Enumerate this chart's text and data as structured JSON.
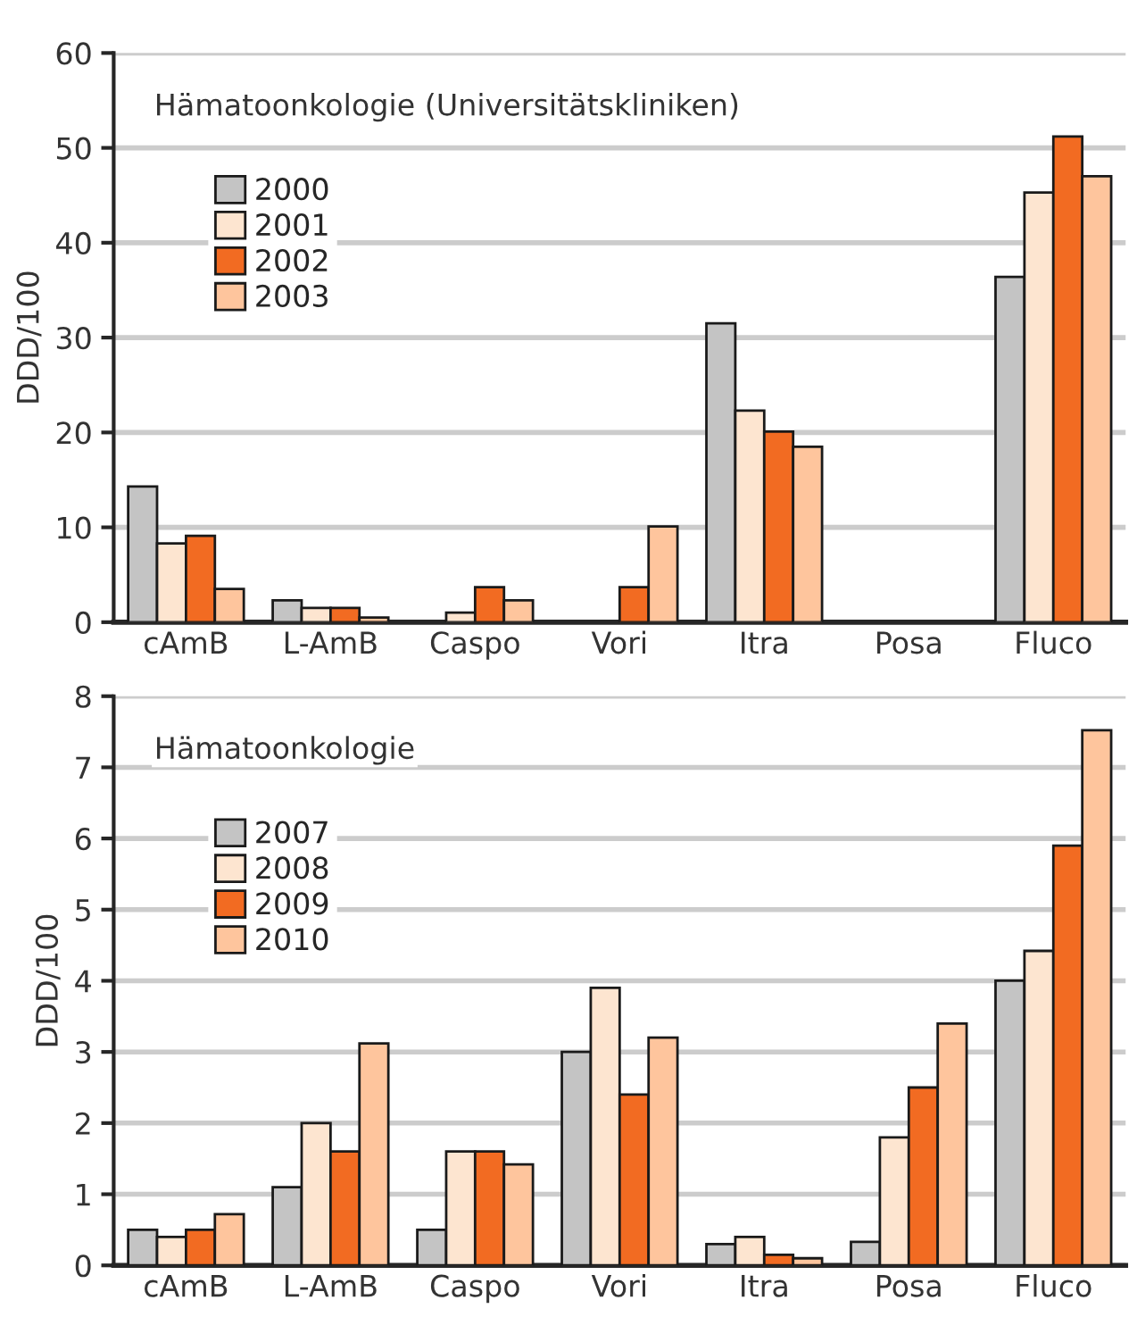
{
  "chart_data": [
    {
      "type": "bar",
      "title": "Hämatoonkologie (Universitätskliniken)",
      "ylabel": "DDD/100",
      "categories": [
        "cAmB",
        "L-AmB",
        "Caspo",
        "Vori",
        "Itra",
        "Posa",
        "Fluco"
      ],
      "ylim": [
        0,
        60
      ],
      "yticks": [
        0,
        10,
        20,
        30,
        40,
        50,
        60
      ],
      "grid": "y",
      "legend": "top left",
      "series": [
        {
          "name": "2000",
          "color": "#c4c4c4",
          "values": [
            14.3,
            2.3,
            null,
            null,
            31.5,
            null,
            36.4
          ]
        },
        {
          "name": "2001",
          "color": "#fde5d0",
          "values": [
            8.3,
            1.5,
            1.0,
            null,
            22.3,
            null,
            45.3
          ]
        },
        {
          "name": "2002",
          "color": "#f26b22",
          "values": [
            9.1,
            1.5,
            3.7,
            3.7,
            20.1,
            null,
            51.2
          ]
        },
        {
          "name": "2003",
          "color": "#fec59d",
          "values": [
            3.5,
            0.5,
            2.3,
            10.1,
            18.5,
            null,
            47.0
          ]
        }
      ]
    },
    {
      "type": "bar",
      "title": "Hämatoonkologie",
      "ylabel": "DDD/100",
      "categories": [
        "cAmB",
        "L-AmB",
        "Caspo",
        "Vori",
        "Itra",
        "Posa",
        "Fluco"
      ],
      "ylim": [
        0,
        8
      ],
      "yticks": [
        0,
        1,
        2,
        3,
        4,
        5,
        6,
        7,
        8
      ],
      "grid": "y",
      "legend": "top left",
      "series": [
        {
          "name": "2007",
          "color": "#c4c4c4",
          "values": [
            0.5,
            1.1,
            0.5,
            3.0,
            0.3,
            0.33,
            4.0
          ]
        },
        {
          "name": "2008",
          "color": "#fde5d0",
          "values": [
            0.4,
            2.0,
            1.6,
            3.9,
            0.4,
            1.8,
            4.42
          ]
        },
        {
          "name": "2009",
          "color": "#f26b22",
          "values": [
            0.5,
            1.6,
            1.6,
            2.4,
            0.15,
            2.5,
            5.9
          ]
        },
        {
          "name": "2010",
          "color": "#fec59d",
          "values": [
            0.72,
            3.12,
            1.42,
            3.2,
            0.1,
            3.4,
            7.52
          ]
        }
      ]
    }
  ]
}
